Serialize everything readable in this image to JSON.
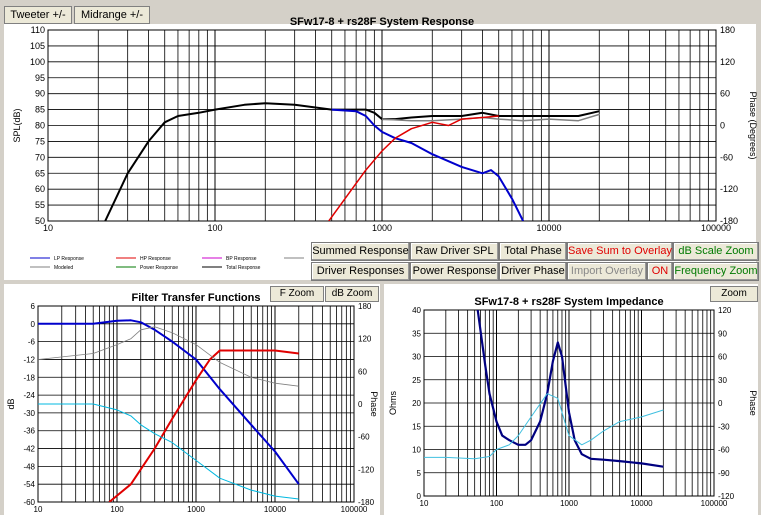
{
  "tabs": {
    "tweeter": "Tweeter +/-",
    "midrange": "Midrange  +/-"
  },
  "top_chart": {
    "title": "SFw17-8 + rs28F    System Response",
    "ylabel_left": "SPL(dB)",
    "ylabel_right": "Phase (Degrees)",
    "left_ticks": [
      "110",
      "105",
      "100",
      "95",
      "90",
      "85",
      "80",
      "75",
      "70",
      "65",
      "60",
      "55",
      "50"
    ],
    "right_ticks": [
      "180",
      "120",
      "60",
      "0",
      "-60",
      "-120",
      "-180"
    ],
    "x_ticks": [
      "10",
      "100",
      "1000",
      "10000",
      "100000"
    ],
    "legend": [
      {
        "label": "LP Response",
        "color": "#0000cc"
      },
      {
        "label": "HP Response",
        "color": "#e00000"
      },
      {
        "label": "BP Response",
        "color": "#cc00cc"
      },
      {
        "label": "Modeled",
        "color": "#808080"
      },
      {
        "label": "Power Response",
        "color": "#007a00"
      },
      {
        "label": "Total Response",
        "color": "#000000"
      }
    ]
  },
  "buttons": {
    "summed_response": "Summed Response",
    "raw_driver_spl": "Raw Driver SPL",
    "total_phase": "Total Phase",
    "save_sum": "Save Sum to Overlay",
    "db_scale_zoom": "dB Scale Zoom",
    "driver_responses": "Driver Responses",
    "power_response": "Power Response",
    "driver_phase": "Driver Phase",
    "import_overlay": "Import Overlay",
    "on": "ON",
    "frequency_zoom": "Frequency Zoom",
    "f_zoom": "F Zoom",
    "db_zoom": "dB Zoom",
    "zoom": "Zoom"
  },
  "filter_chart": {
    "title": "Filter Transfer Functions",
    "ylabel_left": "dB",
    "ylabel_right": "Phase",
    "left_ticks": [
      "6",
      "0",
      "-6",
      "-12",
      "-18",
      "-24",
      "-30",
      "-36",
      "-42",
      "-48",
      "-54",
      "-60"
    ],
    "right_ticks": [
      "180",
      "120",
      "60",
      "0",
      "-60",
      "-120",
      "-180"
    ],
    "x_ticks": [
      "10",
      "100",
      "1000",
      "10000",
      "100000"
    ]
  },
  "impedance_chart": {
    "title": "SFw17-8 + rs28F    System Impedance",
    "ylabel_left": "Ohms",
    "ylabel_right": "Phase",
    "left_ticks": [
      "40",
      "35",
      "30",
      "25",
      "20",
      "15",
      "10",
      "5",
      "0"
    ],
    "right_ticks": [
      "120",
      "90",
      "60",
      "30",
      "0",
      "-30",
      "-60",
      "-90",
      "-120"
    ],
    "x_ticks": [
      "10",
      "100",
      "1000",
      "10000",
      "100000"
    ]
  },
  "chart_data": [
    {
      "type": "line",
      "title": "SFw17-8 + rs28F    System Response",
      "xlabel": "",
      "ylabel": "SPL(dB)",
      "y2label": "Phase (Degrees)",
      "xscale": "log",
      "xlim": [
        10,
        100000
      ],
      "ylim": [
        50,
        110
      ],
      "y2lim": [
        -180,
        180
      ],
      "grid": true,
      "series": [
        {
          "name": "Total Response",
          "color": "#000000",
          "x": [
            22,
            30,
            40,
            50,
            60,
            80,
            100,
            150,
            200,
            300,
            500,
            700,
            800,
            900,
            1000,
            1200,
            1500,
            2000,
            3000,
            4000,
            5000,
            7000,
            10000,
            15000,
            20000
          ],
          "y": [
            50,
            65,
            75,
            81,
            83,
            84,
            85,
            86.5,
            87,
            86.5,
            85,
            85,
            85,
            84,
            82,
            82,
            82.5,
            83,
            83,
            84,
            83,
            83,
            83,
            83,
            84.5
          ]
        },
        {
          "name": "Modeled",
          "color": "#808080",
          "x": [
            1000,
            1500,
            2000,
            3000,
            4000,
            5000,
            7000,
            10000,
            15000,
            20000
          ],
          "y": [
            82,
            81.5,
            81.5,
            82,
            82.5,
            82,
            81.5,
            82,
            81.5,
            83.5
          ]
        },
        {
          "name": "LP Response",
          "color": "#0000cc",
          "x": [
            500,
            700,
            800,
            900,
            1000,
            1200,
            1500,
            2000,
            3000,
            4000,
            4500,
            5000,
            6000,
            7000
          ],
          "y": [
            85,
            84.5,
            83,
            80,
            78,
            76,
            74.5,
            71,
            67,
            65,
            66,
            64,
            57,
            50
          ]
        },
        {
          "name": "HP Response",
          "color": "#e00000",
          "x": [
            480,
            600,
            800,
            1000,
            1200,
            1500,
            2000,
            2500,
            3000,
            4000,
            5000
          ],
          "y": [
            50,
            57,
            66,
            72,
            76,
            79,
            81,
            80,
            82,
            82.5,
            83
          ]
        }
      ]
    },
    {
      "type": "line",
      "title": "Filter Transfer Functions",
      "xlabel": "",
      "ylabel": "dB",
      "y2label": "Phase",
      "xscale": "log",
      "xlim": [
        10,
        100000
      ],
      "ylim": [
        -60,
        6
      ],
      "y2lim": [
        -180,
        180
      ],
      "grid": true,
      "series": [
        {
          "name": "",
          "color": "#0000cc",
          "x": [
            10,
            50,
            100,
            150,
            200,
            300,
            500,
            1000,
            2000,
            5000,
            10000,
            20000
          ],
          "y": [
            0,
            0,
            1,
            1.2,
            0.5,
            -2,
            -6,
            -12,
            -22,
            -34,
            -43,
            -54
          ]
        },
        {
          "name": "",
          "color": "#e00000",
          "x": [
            80,
            150,
            200,
            300,
            500,
            1000,
            1500,
            2000,
            3000,
            5000,
            10000,
            20000
          ],
          "y": [
            -60,
            -54,
            -49,
            -42,
            -32,
            -19,
            -12,
            -9,
            -9,
            -9,
            -9,
            -10
          ]
        },
        {
          "name": "",
          "color": "#808080",
          "x": [
            10,
            50,
            100,
            150,
            200,
            300,
            500,
            1000,
            2000,
            5000,
            10000,
            20000
          ],
          "y": [
            -12,
            -10,
            -7,
            -5,
            -2,
            -1,
            -3,
            -7,
            -13,
            -18,
            -20,
            -21
          ]
        },
        {
          "name": "",
          "color": "#00b8e0",
          "x": [
            10,
            50,
            100,
            150,
            200,
            300,
            500,
            1000,
            2000,
            5000,
            10000,
            20000
          ],
          "y": [
            -27,
            -27,
            -29,
            -31,
            -34,
            -37,
            -40,
            -46,
            -52,
            -56,
            -58,
            -59
          ]
        }
      ]
    },
    {
      "type": "line",
      "title": "SFw17-8 + rs28F    System Impedance",
      "xlabel": "",
      "ylabel": "Ohms",
      "y2label": "Phase",
      "xscale": "log",
      "xlim": [
        10,
        100000
      ],
      "ylim": [
        0,
        40
      ],
      "y2lim": [
        -120,
        120
      ],
      "grid": true,
      "series": [
        {
          "name": "",
          "color": "#000080",
          "x": [
            55,
            70,
            80,
            100,
            120,
            150,
            200,
            250,
            300,
            400,
            500,
            600,
            700,
            800,
            1000,
            1200,
            1500,
            2000,
            3000,
            5000,
            10000,
            20000
          ],
          "y": [
            40,
            28,
            22,
            16,
            13,
            12,
            11,
            11,
            12,
            16,
            22,
            29,
            33,
            30,
            18,
            12,
            9,
            8,
            7.8,
            7.5,
            7,
            6.3
          ]
        },
        {
          "name": "",
          "color": "#40c0e0",
          "x": [
            10,
            20,
            50,
            80,
            100,
            150,
            200,
            300,
            500,
            700,
            1000,
            1500,
            2000,
            3000,
            5000,
            10000,
            20000
          ],
          "y": [
            8.3,
            8.3,
            8,
            8.5,
            10,
            11,
            13,
            17,
            22,
            21,
            13,
            11,
            12,
            14,
            16,
            17,
            18.5
          ]
        }
      ]
    }
  ]
}
